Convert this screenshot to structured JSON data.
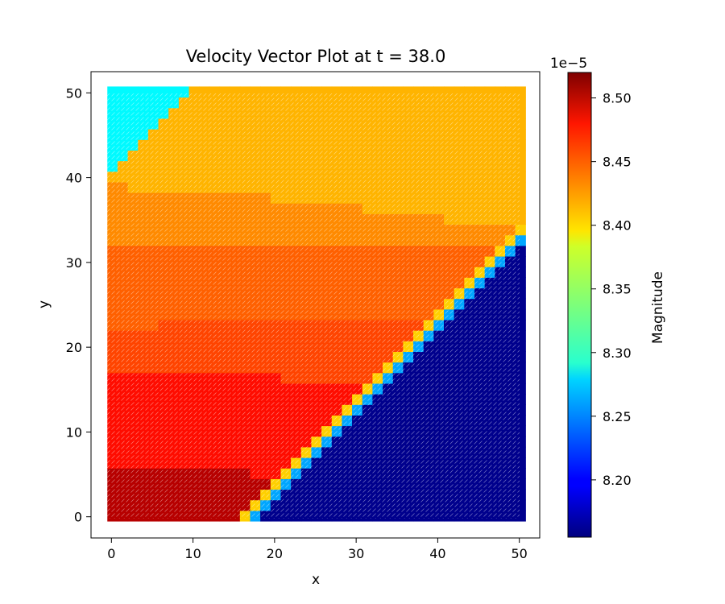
{
  "chart_data": {
    "type": "heatmap",
    "title": "Velocity Vector Plot at t = 38.0",
    "xlabel": "x",
    "ylabel": "y",
    "xlim": [
      -2.5,
      52.5
    ],
    "ylim": [
      -2.5,
      52.5
    ],
    "x_ticks": [
      0,
      10,
      20,
      30,
      40,
      50
    ],
    "y_ticks": [
      0,
      10,
      20,
      30,
      40,
      50
    ],
    "x_range": [
      0,
      50
    ],
    "y_range": [
      0,
      50
    ],
    "grid": false,
    "colormap": "jet",
    "colorbar": {
      "label": "Magnitude",
      "offset_text": "1e−5",
      "range": [
        8.155,
        8.52
      ],
      "ticks": [
        8.2,
        8.25,
        8.3,
        8.35,
        8.4,
        8.45,
        8.5
      ],
      "tick_labels": [
        "8.20",
        "8.25",
        "8.30",
        "8.35",
        "8.40",
        "8.45",
        "8.50"
      ]
    },
    "regions": [
      {
        "name": "upper-left corner",
        "value": 8.29,
        "description": "region above line y = x + 40"
      },
      {
        "name": "upper band",
        "value": 8.41,
        "description": "y from about 32–40 up to 50"
      },
      {
        "name": "middle bands",
        "values": [
          8.43,
          8.445,
          8.46
        ],
        "description": "horizontal-ish bands y ≈ 5–32"
      },
      {
        "name": "lower-left",
        "value": 8.5,
        "description": "x < 16, y < 6"
      },
      {
        "name": "lower-right triangle",
        "value": 8.16,
        "description": "region below line y = x − 17"
      }
    ],
    "front_lines": [
      {
        "description": "front between upper-left corner and upper band",
        "slope": 1,
        "intercept": 40
      },
      {
        "description": "front between main flow and lower-right triangle",
        "slope": 1,
        "intercept": -17
      }
    ]
  }
}
